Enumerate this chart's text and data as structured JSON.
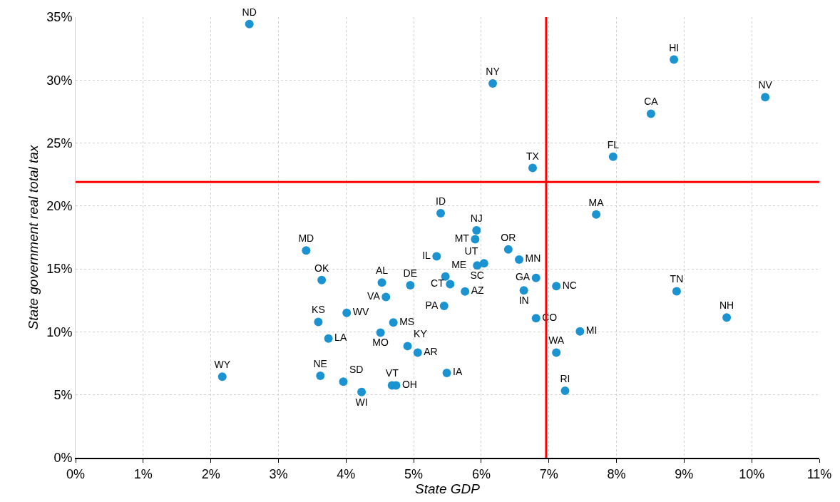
{
  "chart_data": {
    "type": "scatter",
    "xlabel": "State GDP",
    "ylabel": "State government real total tax",
    "xlim": [
      0,
      11
    ],
    "ylim": [
      0,
      35
    ],
    "xticks": [
      {
        "value": 0,
        "label": "0%"
      },
      {
        "value": 1,
        "label": "1%"
      },
      {
        "value": 2,
        "label": "2%"
      },
      {
        "value": 3,
        "label": "3%"
      },
      {
        "value": 4,
        "label": "4%"
      },
      {
        "value": 5,
        "label": "5%"
      },
      {
        "value": 6,
        "label": "6%"
      },
      {
        "value": 7,
        "label": "7%"
      },
      {
        "value": 8,
        "label": "8%"
      },
      {
        "value": 9,
        "label": "9%"
      },
      {
        "value": 10,
        "label": "10%"
      },
      {
        "value": 11,
        "label": "11%"
      }
    ],
    "yticks": [
      {
        "value": 0,
        "label": "0%"
      },
      {
        "value": 5,
        "label": "5%"
      },
      {
        "value": 10,
        "label": "10%"
      },
      {
        "value": 15,
        "label": "15%"
      },
      {
        "value": 20,
        "label": "20%"
      },
      {
        "value": 25,
        "label": "25%"
      },
      {
        "value": 30,
        "label": "30%"
      },
      {
        "value": 35,
        "label": "35%"
      }
    ],
    "grid": true,
    "legend": false,
    "marker": "circle",
    "ref_lines": [
      {
        "axis": "y",
        "value": 21.9,
        "color": "#ff0000"
      },
      {
        "axis": "x",
        "value": 6.96,
        "color": "#ff0000"
      }
    ],
    "series": [
      {
        "name": "ND",
        "color": "#1b93d1",
        "x": [
          2.57
        ],
        "values": [
          34.45
        ]
      },
      {
        "name": "NY",
        "color": "#1b93d1",
        "x": [
          6.17
        ],
        "values": [
          29.73
        ]
      },
      {
        "name": "HI",
        "color": "#1b93d1",
        "x": [
          8.85
        ],
        "values": [
          31.63
        ]
      },
      {
        "name": "NV",
        "color": "#1b93d1",
        "x": [
          10.2
        ],
        "values": [
          28.64
        ]
      },
      {
        "name": "CA",
        "color": "#1b93d1",
        "x": [
          8.51
        ],
        "values": [
          27.33
        ]
      },
      {
        "name": "FL",
        "color": "#1b93d1",
        "x": [
          7.95
        ],
        "values": [
          23.91
        ]
      },
      {
        "name": "TX",
        "color": "#1b93d1",
        "x": [
          6.76
        ],
        "values": [
          23.02
        ]
      },
      {
        "name": "MA",
        "color": "#1b93d1",
        "x": [
          7.7
        ],
        "values": [
          19.33
        ]
      },
      {
        "name": "ID",
        "color": "#1b93d1",
        "x": [
          5.4
        ],
        "values": [
          19.43
        ]
      },
      {
        "name": "NJ",
        "color": "#1b93d1",
        "x": [
          5.93
        ],
        "values": [
          18.06
        ]
      },
      {
        "name": "MT",
        "color": "#1b93d1",
        "x": [
          5.91
        ],
        "values": [
          17.36
        ]
      },
      {
        "name": "SC",
        "color": "#1b93d1",
        "x": [
          5.94
        ],
        "values": [
          15.28
        ]
      },
      {
        "name": "UT",
        "color": "#1b93d1",
        "x": [
          6.04
        ],
        "values": [
          15.45
        ]
      },
      {
        "name": "OR",
        "color": "#1b93d1",
        "x": [
          6.4
        ],
        "values": [
          16.55
        ]
      },
      {
        "name": "MN",
        "color": "#1b93d1",
        "x": [
          6.56
        ],
        "values": [
          15.75
        ]
      },
      {
        "name": "MD",
        "color": "#1b93d1",
        "x": [
          3.41
        ],
        "values": [
          16.47
        ]
      },
      {
        "name": "OK",
        "color": "#1b93d1",
        "x": [
          3.64
        ],
        "values": [
          14.11
        ]
      },
      {
        "name": "AL",
        "color": "#1b93d1",
        "x": [
          4.53
        ],
        "values": [
          13.92
        ]
      },
      {
        "name": "VA",
        "color": "#1b93d1",
        "x": [
          4.59
        ],
        "values": [
          12.77
        ]
      },
      {
        "name": "DE",
        "color": "#1b93d1",
        "x": [
          4.95
        ],
        "values": [
          13.7
        ]
      },
      {
        "name": "IL",
        "color": "#1b93d1",
        "x": [
          5.34
        ],
        "values": [
          16.0
        ]
      },
      {
        "name": "ME",
        "color": "#1b93d1",
        "x": [
          5.47
        ],
        "values": [
          14.4
        ]
      },
      {
        "name": "CT",
        "color": "#1b93d1",
        "x": [
          5.54
        ],
        "values": [
          13.79
        ]
      },
      {
        "name": "AZ",
        "color": "#1b93d1",
        "x": [
          5.76
        ],
        "values": [
          13.21
        ]
      },
      {
        "name": "PA",
        "color": "#1b93d1",
        "x": [
          5.45
        ],
        "values": [
          12.06
        ]
      },
      {
        "name": "IN",
        "color": "#1b93d1",
        "x": [
          6.63
        ],
        "values": [
          13.3
        ]
      },
      {
        "name": "GA",
        "color": "#1b93d1",
        "x": [
          6.81
        ],
        "values": [
          14.28
        ]
      },
      {
        "name": "NC",
        "color": "#1b93d1",
        "x": [
          7.11
        ],
        "values": [
          13.64
        ]
      },
      {
        "name": "CO",
        "color": "#1b93d1",
        "x": [
          6.81
        ],
        "values": [
          11.09
        ]
      },
      {
        "name": "MI",
        "color": "#1b93d1",
        "x": [
          7.46
        ],
        "values": [
          10.04
        ]
      },
      {
        "name": "WA",
        "color": "#1b93d1",
        "x": [
          7.11
        ],
        "values": [
          8.36
        ]
      },
      {
        "name": "RI",
        "color": "#1b93d1",
        "x": [
          7.24
        ],
        "values": [
          5.32
        ]
      },
      {
        "name": "TN",
        "color": "#1b93d1",
        "x": [
          8.89
        ],
        "values": [
          13.23
        ]
      },
      {
        "name": "NH",
        "color": "#1b93d1",
        "x": [
          9.63
        ],
        "values": [
          11.14
        ]
      },
      {
        "name": "KS",
        "color": "#1b93d1",
        "x": [
          3.59
        ],
        "values": [
          10.79
        ]
      },
      {
        "name": "LA",
        "color": "#1b93d1",
        "x": [
          3.74
        ],
        "values": [
          9.47
        ]
      },
      {
        "name": "WV",
        "color": "#1b93d1",
        "x": [
          4.01
        ],
        "values": [
          11.51
        ]
      },
      {
        "name": "MO",
        "color": "#1b93d1",
        "x": [
          4.51
        ],
        "values": [
          9.94
        ]
      },
      {
        "name": "MS",
        "color": "#1b93d1",
        "x": [
          4.7
        ],
        "values": [
          10.75
        ]
      },
      {
        "name": "KY",
        "color": "#1b93d1",
        "x": [
          4.91
        ],
        "values": [
          8.87
        ]
      },
      {
        "name": "AR",
        "color": "#1b93d1",
        "x": [
          5.06
        ],
        "values": [
          8.36
        ]
      },
      {
        "name": "IA",
        "color": "#1b93d1",
        "x": [
          5.49
        ],
        "values": [
          6.74
        ]
      },
      {
        "name": "NE",
        "color": "#1b93d1",
        "x": [
          3.62
        ],
        "values": [
          6.51
        ]
      },
      {
        "name": "SD",
        "color": "#1b93d1",
        "x": [
          3.96
        ],
        "values": [
          6.04
        ]
      },
      {
        "name": "WI",
        "color": "#1b93d1",
        "x": [
          4.23
        ],
        "values": [
          5.23
        ]
      },
      {
        "name": "VT",
        "color": "#1b93d1",
        "x": [
          4.68
        ],
        "values": [
          5.75
        ]
      },
      {
        "name": "OH",
        "color": "#1b93d1",
        "x": [
          4.74
        ],
        "values": [
          5.75
        ]
      },
      {
        "name": "WY",
        "color": "#1b93d1",
        "x": [
          2.17
        ],
        "values": [
          6.44
        ]
      }
    ]
  }
}
